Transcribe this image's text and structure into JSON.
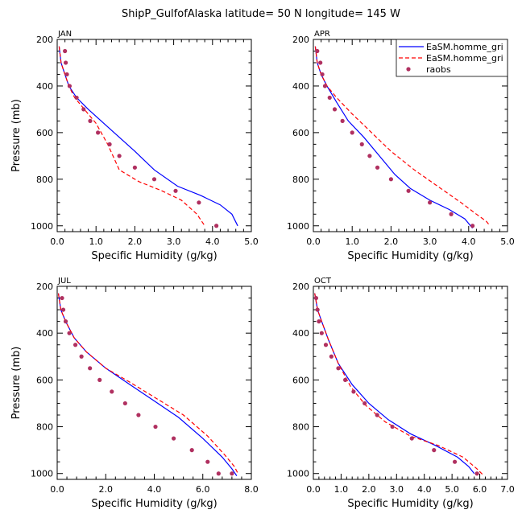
{
  "page_title": "ShipP_GulfofAlaska  latitude= 50 N longitude= 145 W",
  "legend": {
    "placement": "top-right of APR panel",
    "entries": [
      {
        "label": "EaSM.homme_gri",
        "color": "#0000ff",
        "style": "solid"
      },
      {
        "label": "EaSM.homme_gri",
        "color": "#ff0000",
        "style": "dashed"
      },
      {
        "label": "raobs",
        "color": "#b03060",
        "style": "dots"
      }
    ]
  },
  "chart_data": [
    {
      "type": "line",
      "title": "JAN",
      "xlabel": "Specific Humidity (g/kg)",
      "ylabel": "Pressure (mb)",
      "xlim": [
        0,
        5
      ],
      "ylim": [
        1025,
        200
      ],
      "xticks": [
        "0.0",
        "1.0",
        "2.0",
        "3.0",
        "4.0",
        "5.0"
      ],
      "yticks": [
        "200",
        "400",
        "600",
        "800",
        "1000"
      ],
      "series": [
        {
          "name": "EaSM.homme_gri",
          "color": "#0000ff",
          "style": "solid",
          "x": [
            0.05,
            0.1,
            0.2,
            0.3,
            0.5,
            0.8,
            1.2,
            1.6,
            2.0,
            2.5,
            3.1,
            3.7,
            4.2,
            4.5,
            4.65
          ],
          "y": [
            230,
            300,
            350,
            400,
            450,
            500,
            560,
            620,
            680,
            760,
            830,
            870,
            910,
            950,
            1000
          ]
        },
        {
          "name": "EaSM.homme_gri",
          "color": "#ff0000",
          "style": "dashed",
          "x": [
            0.05,
            0.1,
            0.2,
            0.3,
            0.45,
            0.7,
            1.0,
            1.3,
            1.6,
            2.1,
            2.7,
            3.2,
            3.6,
            3.8
          ],
          "y": [
            230,
            300,
            350,
            400,
            450,
            500,
            560,
            650,
            760,
            810,
            850,
            890,
            950,
            1000
          ]
        },
        {
          "name": "raobs",
          "color": "#b03060",
          "style": "dots",
          "x": [
            0.2,
            0.22,
            0.25,
            0.32,
            0.5,
            0.68,
            0.85,
            1.05,
            1.35,
            1.6,
            2.0,
            2.5,
            3.05,
            3.65,
            4.1
          ],
          "y": [
            250,
            300,
            350,
            400,
            450,
            500,
            550,
            600,
            650,
            700,
            750,
            800,
            850,
            900,
            1000
          ]
        }
      ]
    },
    {
      "type": "line",
      "title": "APR",
      "xlabel": "Specific Humidity (g/kg)",
      "ylabel": "",
      "xlim": [
        0,
        5
      ],
      "ylim": [
        1025,
        200
      ],
      "xticks": [
        "0.0",
        "1.0",
        "2.0",
        "3.0",
        "4.0",
        "5.0"
      ],
      "yticks": [
        "200",
        "400",
        "600",
        "800",
        "1000"
      ],
      "series": [
        {
          "name": "EaSM.homme_gri",
          "color": "#0000ff",
          "style": "solid",
          "x": [
            0.05,
            0.1,
            0.2,
            0.35,
            0.6,
            0.9,
            1.3,
            1.7,
            2.1,
            2.5,
            3.0,
            3.5,
            3.9,
            4.1
          ],
          "y": [
            230,
            300,
            350,
            400,
            470,
            550,
            620,
            700,
            780,
            840,
            890,
            930,
            970,
            1010
          ]
        },
        {
          "name": "EaSM.homme_gri",
          "color": "#ff0000",
          "style": "dashed",
          "x": [
            0.05,
            0.1,
            0.2,
            0.35,
            0.6,
            1.0,
            1.5,
            2.0,
            2.6,
            3.2,
            3.8,
            4.2,
            4.45,
            4.55
          ],
          "y": [
            230,
            300,
            350,
            400,
            450,
            520,
            600,
            680,
            760,
            830,
            900,
            950,
            980,
            1000
          ]
        },
        {
          "name": "raobs",
          "color": "#b03060",
          "style": "dots",
          "x": [
            0.1,
            0.18,
            0.23,
            0.3,
            0.42,
            0.55,
            0.75,
            1.0,
            1.25,
            1.45,
            1.65,
            2.0,
            2.45,
            3.0,
            3.55,
            4.1
          ],
          "y": [
            250,
            300,
            350,
            400,
            450,
            500,
            550,
            600,
            650,
            700,
            750,
            800,
            850,
            900,
            950,
            1000
          ]
        }
      ]
    },
    {
      "type": "line",
      "title": "JUL",
      "xlabel": "Specific Humidity (g/kg)",
      "ylabel": "Pressure (mb)",
      "xlim": [
        0,
        8
      ],
      "ylim": [
        1025,
        200
      ],
      "xticks": [
        "0.0",
        "2.0",
        "4.0",
        "6.0",
        "8.0"
      ],
      "yticks": [
        "200",
        "400",
        "600",
        "800",
        "1000"
      ],
      "series": [
        {
          "name": "EaSM.homme_gri",
          "color": "#0000ff",
          "style": "solid",
          "x": [
            0.05,
            0.15,
            0.35,
            0.7,
            1.2,
            2.0,
            3.0,
            4.0,
            5.0,
            6.0,
            6.8,
            7.2,
            7.4
          ],
          "y": [
            230,
            300,
            350,
            420,
            480,
            550,
            620,
            690,
            760,
            850,
            930,
            980,
            1010
          ]
        },
        {
          "name": "EaSM.homme_gri",
          "color": "#ff0000",
          "style": "dashed",
          "x": [
            0.05,
            0.15,
            0.35,
            0.7,
            1.2,
            2.0,
            3.0,
            4.1,
            5.2,
            6.2,
            6.9,
            7.3,
            7.45
          ],
          "y": [
            230,
            300,
            350,
            420,
            480,
            550,
            610,
            680,
            750,
            840,
            920,
            970,
            1000
          ]
        },
        {
          "name": "raobs",
          "color": "#b03060",
          "style": "dots",
          "x": [
            0.2,
            0.25,
            0.35,
            0.5,
            0.75,
            1.0,
            1.35,
            1.75,
            2.25,
            2.8,
            3.35,
            4.05,
            4.8,
            5.55,
            6.2,
            6.65,
            7.2
          ],
          "y": [
            250,
            300,
            350,
            400,
            450,
            500,
            550,
            600,
            650,
            700,
            750,
            800,
            850,
            900,
            950,
            1000,
            1000
          ]
        }
      ]
    },
    {
      "type": "line",
      "title": "OCT",
      "xlabel": "Specific Humidity (g/kg)",
      "ylabel": "",
      "xlim": [
        0,
        7
      ],
      "ylim": [
        1025,
        200
      ],
      "xticks": [
        "0.0",
        "1.0",
        "2.0",
        "3.0",
        "4.0",
        "5.0",
        "6.0",
        "7.0"
      ],
      "yticks": [
        "200",
        "400",
        "600",
        "800",
        "1000"
      ],
      "series": [
        {
          "name": "EaSM.homme_gri",
          "color": "#0000ff",
          "style": "solid",
          "x": [
            0.05,
            0.15,
            0.3,
            0.55,
            0.9,
            1.4,
            2.0,
            2.7,
            3.5,
            4.4,
            5.2,
            5.6,
            5.8
          ],
          "y": [
            230,
            300,
            350,
            430,
            530,
            620,
            700,
            770,
            830,
            880,
            930,
            970,
            1000
          ]
        },
        {
          "name": "EaSM.homme_gri",
          "color": "#ff0000",
          "style": "dashed",
          "x": [
            0.05,
            0.15,
            0.3,
            0.55,
            0.9,
            1.35,
            1.9,
            2.6,
            3.5,
            4.5,
            5.4,
            5.9,
            6.15
          ],
          "y": [
            230,
            300,
            350,
            430,
            530,
            630,
            710,
            780,
            840,
            880,
            930,
            980,
            1010
          ]
        },
        {
          "name": "raobs",
          "color": "#b03060",
          "style": "dots",
          "x": [
            0.1,
            0.15,
            0.2,
            0.3,
            0.45,
            0.65,
            0.9,
            1.15,
            1.45,
            1.85,
            2.3,
            2.85,
            3.55,
            4.35,
            5.1,
            5.9
          ],
          "y": [
            250,
            300,
            350,
            400,
            450,
            500,
            550,
            600,
            650,
            700,
            750,
            800,
            850,
            900,
            950,
            1000
          ]
        }
      ]
    }
  ]
}
